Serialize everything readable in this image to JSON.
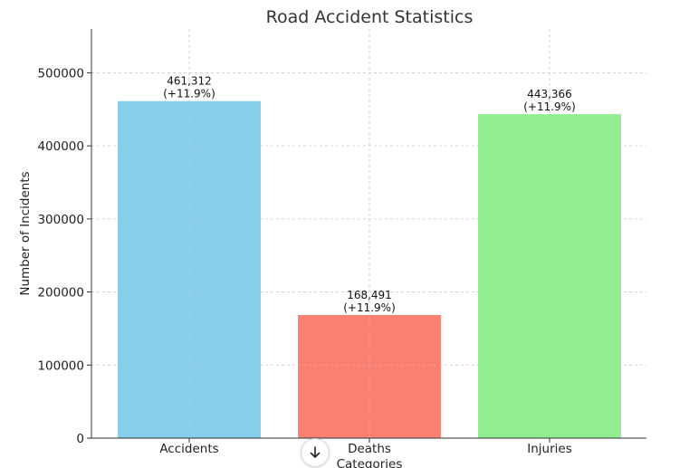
{
  "chart_data": {
    "type": "bar",
    "title": "Road Accident Statistics",
    "xlabel": "Categories",
    "ylabel": "Number of Incidents",
    "categories": [
      "Accidents",
      "Deaths",
      "Injuries"
    ],
    "values": [
      461312,
      168491,
      443366
    ],
    "data_labels": [
      [
        "461,312",
        "(+11.9%)"
      ],
      [
        "168,491",
        "(+11.9%)"
      ],
      [
        "443,366",
        "(+11.9%)"
      ]
    ],
    "colors": [
      "#87CEEB",
      "#FA8072",
      "#90EE90"
    ],
    "ylim": [
      0,
      560000
    ],
    "yticks": [
      0,
      100000,
      200000,
      300000,
      400000,
      500000
    ],
    "ytick_labels": [
      "0",
      "100000",
      "200000",
      "300000",
      "400000",
      "500000"
    ],
    "grid": true
  },
  "ui": {
    "scroll_button_icon": "arrow-down-icon"
  }
}
